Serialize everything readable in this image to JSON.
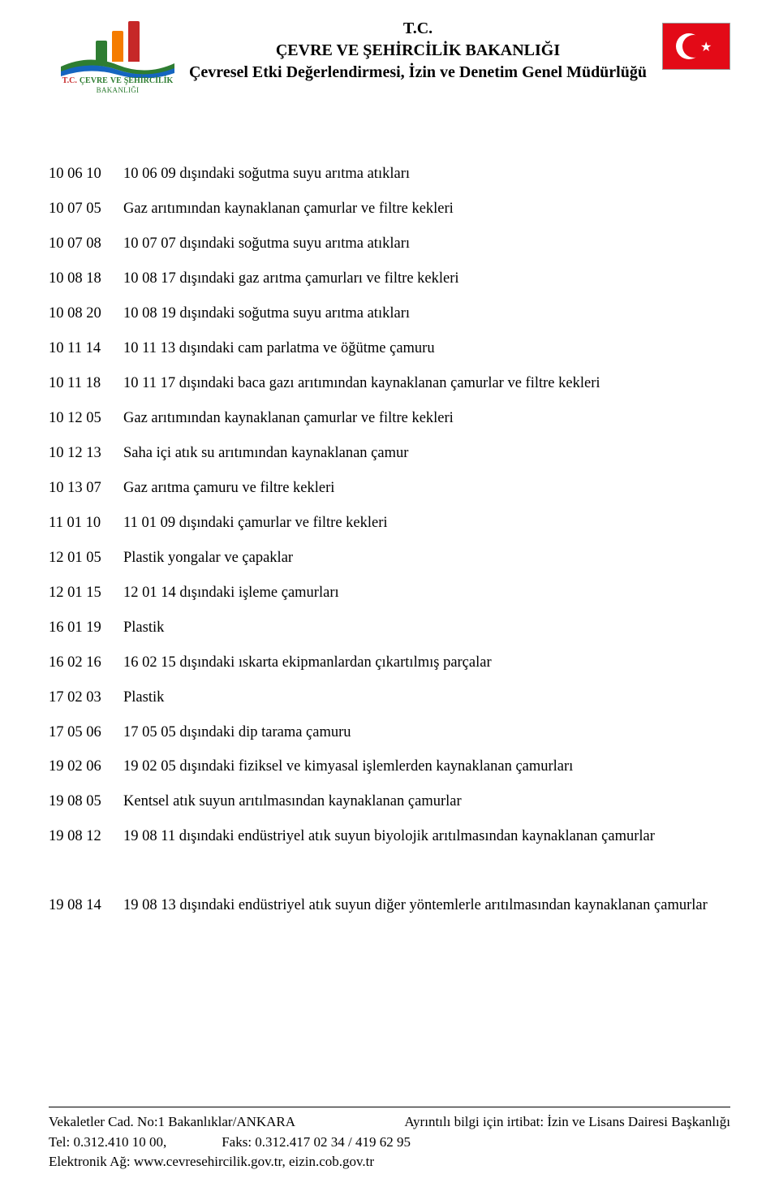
{
  "header": {
    "tc": "T.C.",
    "line1": "ÇEVRE VE ŞEHİRCİLİK BAKANLIĞI",
    "line2": "Çevresel Etki Değerlendirmesi, İzin ve Denetim Genel Müdürlüğü",
    "logo": {
      "tc": "T.C.",
      "l1a": "ÇEVRE",
      "l1b": "VE",
      "l1c": "ŞEHİRCİLİK",
      "sub": "BAKANLIĞI",
      "bar_colors": [
        "#2e7d32",
        "#f57c00",
        "#c62828"
      ]
    },
    "flag_bg": "#e30a17"
  },
  "rows": [
    {
      "code": "10 06 10",
      "desc": "10 06 09 dışındaki soğutma suyu arıtma atıkları"
    },
    {
      "code": "10 07 05",
      "desc": "Gaz arıtımından kaynaklanan çamurlar ve filtre kekleri"
    },
    {
      "code": "10 07 08",
      "desc": "10 07 07 dışındaki soğutma suyu arıtma atıkları"
    },
    {
      "code": "10 08 18",
      "desc": "10 08 17 dışındaki gaz arıtma çamurları ve filtre kekleri"
    },
    {
      "code": "10 08 20",
      "desc": "10 08 19 dışındaki soğutma suyu arıtma atıkları"
    },
    {
      "code": "10 11 14",
      "desc": "10 11 13 dışındaki cam parlatma ve öğütme çamuru"
    },
    {
      "code": "10 11 18",
      "desc": "10 11 17 dışındaki baca gazı arıtımından kaynaklanan çamurlar ve filtre kekleri"
    },
    {
      "code": "10 12 05",
      "desc": "Gaz arıtımından kaynaklanan çamurlar ve filtre kekleri"
    },
    {
      "code": "10 12 13",
      "desc": "Saha içi atık su arıtımından kaynaklanan çamur"
    },
    {
      "code": "10 13 07",
      "desc": "Gaz arıtma çamuru ve filtre kekleri"
    },
    {
      "code": "11 01 10",
      "desc": "11 01 09 dışındaki çamurlar ve filtre kekleri"
    },
    {
      "code": "12 01 05",
      "desc": "Plastik yongalar ve çapaklar"
    },
    {
      "code": "12 01 15",
      "desc": "12 01 14 dışındaki işleme çamurları"
    },
    {
      "code": "16 01 19",
      "desc": "Plastik"
    },
    {
      "code": "16 02 16",
      "desc": "16 02 15 dışındaki ıskarta ekipmanlardan çıkartılmış parçalar"
    },
    {
      "code": "17 02 03",
      "desc": "Plastik"
    },
    {
      "code": "17 05 06",
      "desc": "17 05 05 dışındaki dip tarama çamuru"
    },
    {
      "code": "19 02 06",
      "desc": "19 02 05 dışındaki fiziksel ve kimyasal işlemlerden kaynaklanan çamurları"
    },
    {
      "code": "19 08 05",
      "desc": "Kentsel atık suyun arıtılmasından kaynaklanan çamurlar"
    },
    {
      "code": "19 08 12",
      "desc": "19 08 11 dışındaki endüstriyel atık suyun biyolojik arıtılmasından kaynaklanan çamurlar"
    }
  ],
  "extra_row": {
    "code": "19 08 14",
    "desc": "19 08 13 dışındaki endüstriyel atık suyun diğer yöntemlerle arıtılmasından kaynaklanan çamurlar"
  },
  "footer": {
    "addr": "Vekaletler Cad. No:1 Bakanlıklar/ANKARA",
    "info": "Ayrıntılı bilgi için irtibat: İzin ve Lisans Dairesi Başkanlığı",
    "tel_label": "Tel: 0.312.410 10 00,",
    "fax_label": "Faks: 0.312.417 02 34 / 419 62 95",
    "web": "Elektronik Ağ: www.cevresehircilik.gov.tr, eizin.cob.gov.tr"
  }
}
